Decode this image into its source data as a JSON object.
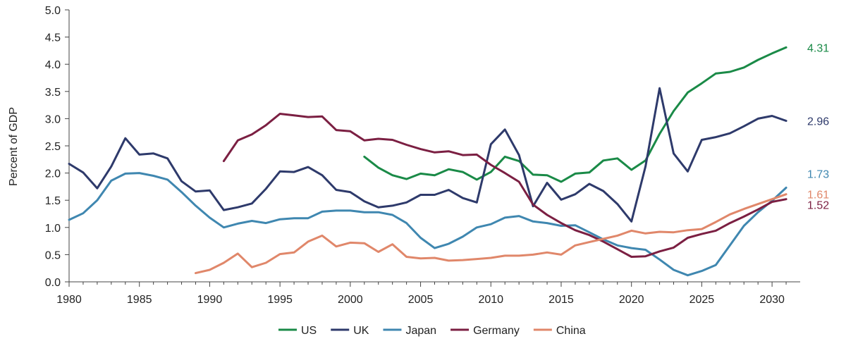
{
  "chart_data": {
    "type": "line",
    "title": "",
    "xlabel": "",
    "ylabel": "Percent of GDP",
    "xlim": [
      1980,
      2032
    ],
    "ylim": [
      0,
      5
    ],
    "x_ticks": [
      1980,
      1985,
      1990,
      1995,
      2000,
      2005,
      2010,
      2015,
      2020,
      2025,
      2030
    ],
    "y_ticks": [
      0.0,
      0.5,
      1.0,
      1.5,
      2.0,
      2.5,
      3.0,
      3.5,
      4.0,
      4.5,
      5.0
    ],
    "x_tick_labels": [
      "1980",
      "1985",
      "1990",
      "1995",
      "2000",
      "2005",
      "2010",
      "2015",
      "2020",
      "2025",
      "2030"
    ],
    "y_tick_labels": [
      "0.0",
      "0.5",
      "1.0",
      "1.5",
      "2.0",
      "2.5",
      "3.0",
      "3.5",
      "4.0",
      "4.5",
      "5.0"
    ],
    "grid": false,
    "legend_position": "bottom",
    "series": [
      {
        "name": "US",
        "color": "#1a8a47",
        "end_label": "4.31",
        "x": [
          2001,
          2002,
          2003,
          2004,
          2005,
          2006,
          2007,
          2008,
          2009,
          2010,
          2011,
          2012,
          2013,
          2014,
          2015,
          2016,
          2017,
          2018,
          2019,
          2020,
          2021,
          2022,
          2023,
          2024,
          2025,
          2026,
          2027,
          2028,
          2029,
          2030,
          2031
        ],
        "y": [
          2.3,
          2.1,
          1.96,
          1.89,
          1.99,
          1.96,
          2.07,
          2.02,
          1.88,
          2.02,
          2.3,
          2.22,
          1.97,
          1.96,
          1.84,
          1.99,
          2.01,
          2.23,
          2.27,
          2.06,
          2.23,
          2.72,
          3.14,
          3.48,
          3.65,
          3.83,
          3.86,
          3.94,
          4.08,
          4.2,
          4.31
        ]
      },
      {
        "name": "UK",
        "color": "#2e3a6b",
        "end_label": "2.96",
        "x": [
          1980,
          1981,
          1982,
          1983,
          1984,
          1985,
          1986,
          1987,
          1988,
          1989,
          1990,
          1991,
          1992,
          1993,
          1994,
          1995,
          1996,
          1997,
          1998,
          1999,
          2000,
          2001,
          2002,
          2003,
          2004,
          2005,
          2006,
          2007,
          2008,
          2009,
          2010,
          2011,
          2012,
          2013,
          2014,
          2015,
          2016,
          2017,
          2018,
          2019,
          2020,
          2021,
          2022,
          2023,
          2024,
          2025,
          2026,
          2027,
          2028,
          2029,
          2030,
          2031
        ],
        "y": [
          2.17,
          2.01,
          1.72,
          2.12,
          2.64,
          2.34,
          2.36,
          2.27,
          1.85,
          1.66,
          1.68,
          1.32,
          1.37,
          1.44,
          1.71,
          2.03,
          2.02,
          2.11,
          1.96,
          1.69,
          1.65,
          1.48,
          1.37,
          1.4,
          1.46,
          1.6,
          1.6,
          1.69,
          1.54,
          1.46,
          2.53,
          2.8,
          2.33,
          1.39,
          1.82,
          1.51,
          1.61,
          1.8,
          1.67,
          1.43,
          1.11,
          2.12,
          3.56,
          2.36,
          2.03,
          2.61,
          2.66,
          2.73,
          2.86,
          3.0,
          3.05,
          2.96
        ]
      },
      {
        "name": "Japan",
        "color": "#3f87b0",
        "end_label": "1.73",
        "x": [
          1980,
          1981,
          1982,
          1983,
          1984,
          1985,
          1986,
          1987,
          1988,
          1989,
          1990,
          1991,
          1992,
          1993,
          1994,
          1995,
          1996,
          1997,
          1998,
          1999,
          2000,
          2001,
          2002,
          2003,
          2004,
          2005,
          2006,
          2007,
          2008,
          2009,
          2010,
          2011,
          2012,
          2013,
          2014,
          2015,
          2016,
          2017,
          2018,
          2019,
          2020,
          2021,
          2022,
          2023,
          2024,
          2025,
          2026,
          2027,
          2028,
          2029,
          2030,
          2031
        ],
        "y": [
          1.14,
          1.26,
          1.5,
          1.86,
          1.99,
          2.0,
          1.95,
          1.88,
          1.65,
          1.4,
          1.18,
          1.0,
          1.07,
          1.12,
          1.08,
          1.15,
          1.17,
          1.17,
          1.29,
          1.31,
          1.31,
          1.28,
          1.28,
          1.23,
          1.08,
          0.81,
          0.62,
          0.7,
          0.83,
          1.0,
          1.06,
          1.18,
          1.21,
          1.11,
          1.08,
          1.03,
          1.04,
          0.91,
          0.78,
          0.67,
          0.62,
          0.59,
          0.41,
          0.22,
          0.12,
          0.2,
          0.31,
          0.67,
          1.03,
          1.28,
          1.49,
          1.73
        ]
      },
      {
        "name": "Germany",
        "color": "#7b1f42",
        "end_label": "1.52",
        "x": [
          1991,
          1992,
          1993,
          1994,
          1995,
          1996,
          1997,
          1998,
          1999,
          2000,
          2001,
          2002,
          2003,
          2004,
          2005,
          2006,
          2007,
          2008,
          2009,
          2010,
          2011,
          2012,
          2013,
          2014,
          2015,
          2016,
          2017,
          2018,
          2019,
          2020,
          2021,
          2022,
          2023,
          2024,
          2025,
          2026,
          2027,
          2028,
          2029,
          2030,
          2031
        ],
        "y": [
          2.22,
          2.6,
          2.71,
          2.88,
          3.09,
          3.06,
          3.03,
          3.04,
          2.79,
          2.77,
          2.6,
          2.63,
          2.61,
          2.52,
          2.44,
          2.38,
          2.4,
          2.33,
          2.34,
          2.15,
          2.0,
          1.84,
          1.42,
          1.23,
          1.08,
          0.95,
          0.86,
          0.74,
          0.6,
          0.46,
          0.47,
          0.56,
          0.63,
          0.81,
          0.88,
          0.94,
          1.08,
          1.2,
          1.33,
          1.47,
          1.52
        ]
      },
      {
        "name": "China",
        "color": "#e0876a",
        "end_label": "1.61",
        "x": [
          1989,
          1990,
          1991,
          1992,
          1993,
          1994,
          1995,
          1996,
          1997,
          1998,
          1999,
          2000,
          2001,
          2002,
          2003,
          2004,
          2005,
          2006,
          2007,
          2008,
          2009,
          2010,
          2011,
          2012,
          2013,
          2014,
          2015,
          2016,
          2017,
          2018,
          2019,
          2020,
          2021,
          2022,
          2023,
          2024,
          2025,
          2026,
          2027,
          2028,
          2029,
          2030,
          2031
        ],
        "y": [
          0.16,
          0.22,
          0.35,
          0.52,
          0.27,
          0.35,
          0.51,
          0.54,
          0.74,
          0.85,
          0.65,
          0.72,
          0.71,
          0.55,
          0.69,
          0.46,
          0.43,
          0.44,
          0.39,
          0.4,
          0.42,
          0.44,
          0.48,
          0.48,
          0.5,
          0.54,
          0.5,
          0.67,
          0.73,
          0.79,
          0.85,
          0.94,
          0.89,
          0.92,
          0.91,
          0.95,
          0.97,
          1.1,
          1.24,
          1.34,
          1.43,
          1.52,
          1.61
        ]
      }
    ]
  }
}
